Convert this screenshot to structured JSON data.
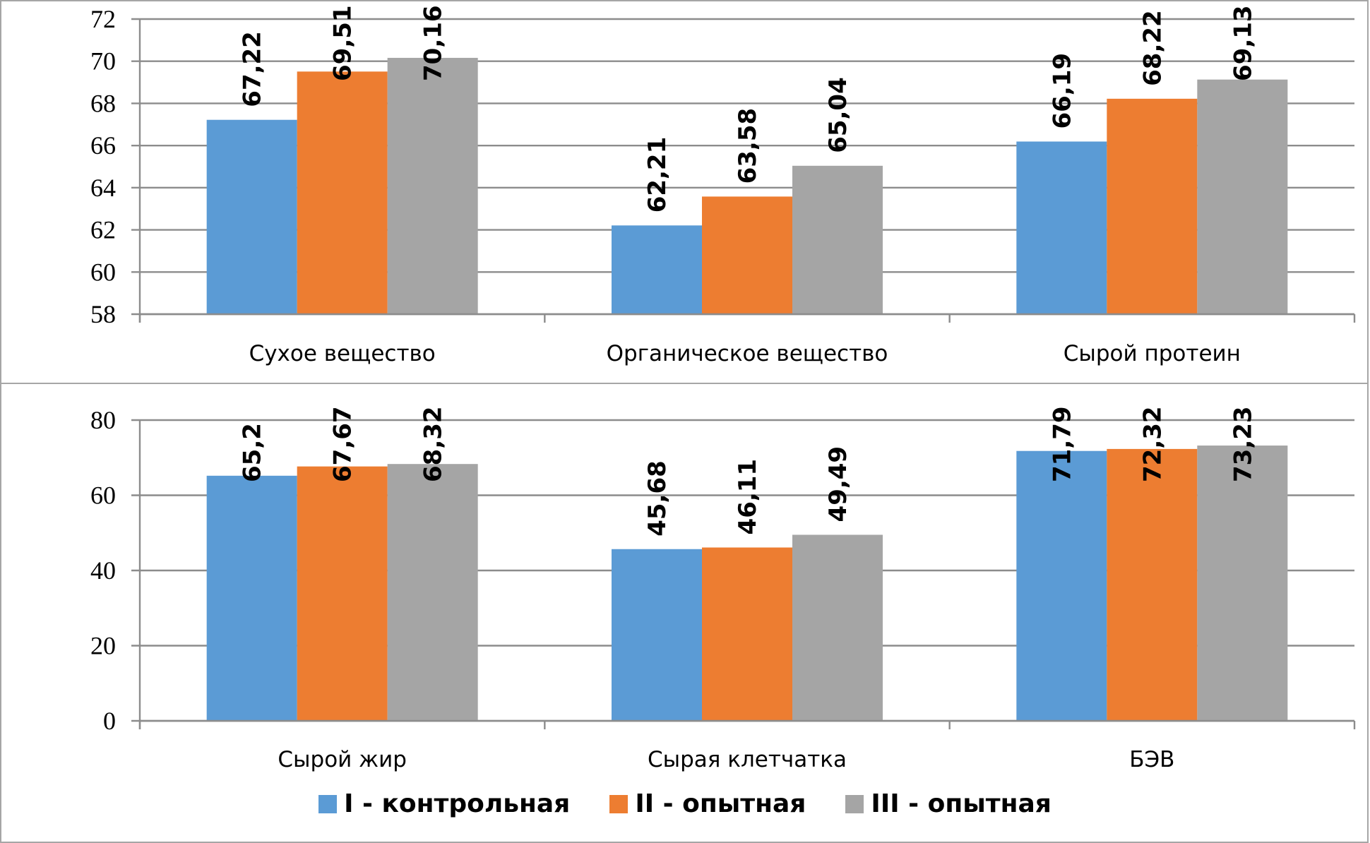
{
  "chart_data": [
    {
      "type": "bar",
      "title": "",
      "xlabel": "",
      "ylabel": "",
      "categories": [
        "Сухое вещество",
        "Органическое вещество",
        "Сырой протеин"
      ],
      "ylim": [
        58,
        72
      ],
      "yticks": [
        58,
        60,
        62,
        64,
        66,
        68,
        70,
        72
      ],
      "grid": true,
      "series": [
        {
          "name": "I - контрольная",
          "color": "#5b9bd5",
          "values": [
            67.22,
            62.21,
            66.19
          ],
          "labels": [
            "67,22",
            "62,21",
            "66,19"
          ]
        },
        {
          "name": "II - опытная",
          "color": "#ed7d31",
          "values": [
            69.51,
            63.58,
            68.22
          ],
          "labels": [
            "69,51",
            "63,58",
            "68,22"
          ]
        },
        {
          "name": "III - опытная",
          "color": "#a5a5a5",
          "values": [
            70.16,
            65.04,
            69.13
          ],
          "labels": [
            "70,16",
            "65,04",
            "69,13"
          ]
        }
      ]
    },
    {
      "type": "bar",
      "title": "",
      "xlabel": "",
      "ylabel": "",
      "categories": [
        "Сырой жир",
        "Сырая клетчатка",
        "БЭВ"
      ],
      "ylim": [
        0,
        80
      ],
      "yticks": [
        0,
        20,
        40,
        60,
        80
      ],
      "grid": true,
      "series": [
        {
          "name": "I - контрольная",
          "color": "#5b9bd5",
          "values": [
            65.2,
            45.68,
            71.79
          ],
          "labels": [
            "65,2",
            "45,68",
            "71,79"
          ]
        },
        {
          "name": "II - опытная",
          "color": "#ed7d31",
          "values": [
            67.67,
            46.11,
            72.32
          ],
          "labels": [
            "67,67",
            "46,11",
            "72,32"
          ]
        },
        {
          "name": "III - опытная",
          "color": "#a5a5a5",
          "values": [
            68.32,
            49.49,
            73.23
          ],
          "labels": [
            "68,32",
            "49,49",
            "73,23"
          ]
        }
      ]
    }
  ],
  "legend": {
    "placement": "bottom-center",
    "items": [
      {
        "label": "I - контрольная",
        "color": "#5b9bd5"
      },
      {
        "label": "II - опытная",
        "color": "#ed7d31"
      },
      {
        "label": "III - опытная",
        "color": "#a5a5a5"
      }
    ]
  }
}
